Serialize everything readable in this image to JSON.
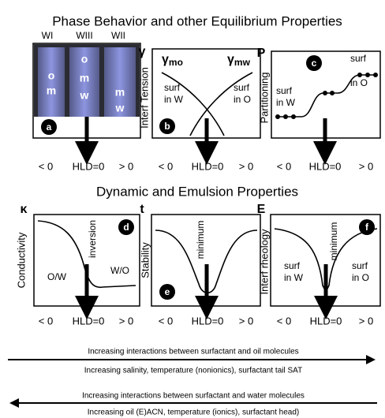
{
  "title": "Phase Behavior and other Equilibrium Properties",
  "subtitle": "Dynamic and Emulsion Properties",
  "panels": [
    {
      "letter": "a",
      "phases": [
        "WI",
        "WIII",
        "WII"
      ],
      "tube_labels": [
        "o",
        "m",
        "o",
        "m",
        "w",
        "m",
        "w"
      ],
      "x_labels": [
        "< 0",
        "HLD=0",
        "> 0"
      ]
    },
    {
      "letter": "b",
      "y_symbol": "γ",
      "y_label": "Interf Tension",
      "curve_labels": [
        {
          "symbol": "γ",
          "sub": "mo"
        },
        {
          "symbol": "γ",
          "sub": "mw"
        }
      ],
      "notes": [
        "surf",
        "in W",
        "surf",
        "in O"
      ],
      "x_labels": [
        "< 0",
        "HLD=0",
        "> 0"
      ]
    },
    {
      "letter": "c",
      "y_symbol": "P",
      "y_label": "Partitioning",
      "notes": [
        "surf",
        "in W",
        "surf",
        "in O"
      ],
      "x_labels": [
        "< 0",
        "HLD=0",
        "> 0"
      ]
    },
    {
      "letter": "d",
      "y_symbol": "κ",
      "y_label": "Conductivity",
      "notes": [
        "inversion",
        "O/W",
        "W/O"
      ],
      "x_labels": [
        "< 0",
        "HLD=0",
        "> 0"
      ]
    },
    {
      "letter": "e",
      "y_symbol": "t",
      "y_label": "Stability",
      "notes": [
        "minimum"
      ],
      "x_labels": [
        "< 0",
        "HLD=0",
        "> 0"
      ]
    },
    {
      "letter": "f",
      "y_symbol": "E",
      "y_label": "Interf rheology",
      "notes": [
        "minimum",
        "surf",
        "in W",
        "surf",
        "in O"
      ],
      "x_labels": [
        "< 0",
        "HLD=0",
        "> 0"
      ]
    }
  ],
  "arrows": [
    {
      "above": "Increasing interactions between surfactant and oil molecules",
      "below": "Increasing salinity, temperature (nonionics), surfactant tail SAT"
    },
    {
      "above": "Increasing interactions between surfactant and water molecules",
      "below": "Increasing oil (E)ACN, temperature (ionics), surfactant head)"
    }
  ]
}
